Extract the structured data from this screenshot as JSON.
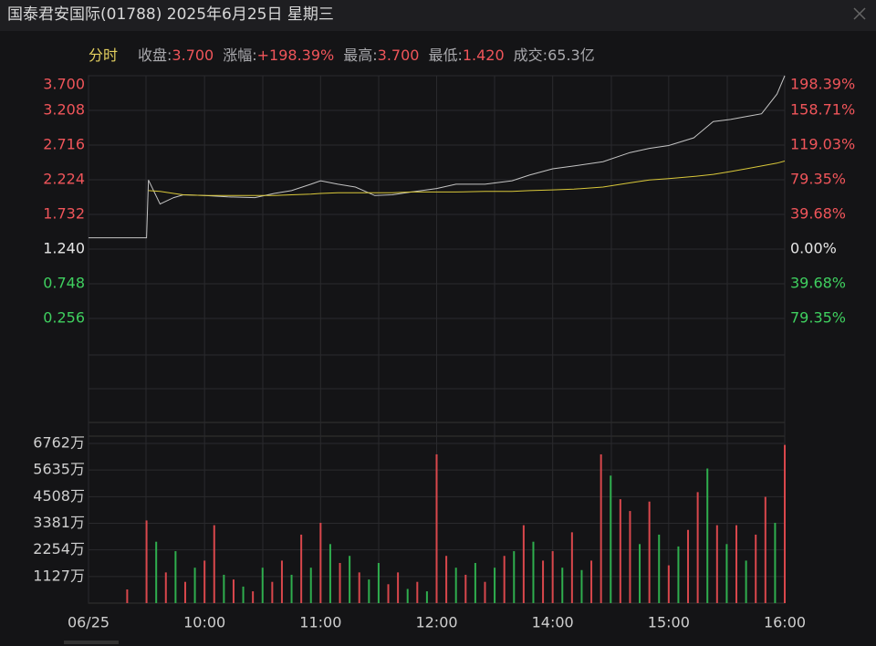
{
  "header": {
    "title": "国泰君安国际(01788) 2025年6月25日 星期三",
    "mode": "分时",
    "stats": [
      {
        "label": "收盘:",
        "value": "3.700",
        "color": "#f0555a"
      },
      {
        "label": "涨幅:",
        "value": "+198.39%",
        "color": "#f0555a"
      },
      {
        "label": "最高:",
        "value": "3.700",
        "color": "#f0555a"
      },
      {
        "label": "最低:",
        "value": "1.420",
        "color": "#f0555a"
      },
      {
        "label": "成交:",
        "value": "65.3亿",
        "color": "#a9a9ad"
      }
    ]
  },
  "chart_data": [
    {
      "type": "line",
      "x": [
        "09:00",
        "09:30",
        "09:31",
        "09:37",
        "09:44",
        "09:49",
        "10:00",
        "10:12",
        "10:26",
        "10:36",
        "10:45",
        "10:55",
        "11:00",
        "11:09",
        "11:18",
        "11:28",
        "11:37",
        "11:47",
        "12:00",
        "13:10",
        "13:25",
        "13:39",
        "13:48",
        "14:00",
        "14:11",
        "14:26",
        "14:40",
        "14:50",
        "15:00",
        "15:13",
        "15:23",
        "15:32",
        "15:40",
        "15:48",
        "15:56",
        "16:00"
      ],
      "series": [
        {
          "color": "#c4c4c4",
          "values": [
            1.4,
            1.4,
            2.22,
            1.88,
            1.97,
            2.01,
            2.0,
            1.98,
            1.97,
            2.03,
            2.07,
            2.16,
            2.21,
            2.16,
            2.12,
            2.0,
            2.01,
            2.05,
            2.1,
            2.16,
            2.16,
            2.21,
            2.29,
            2.38,
            2.42,
            2.48,
            2.61,
            2.67,
            2.71,
            2.82,
            3.05,
            3.08,
            3.12,
            3.16,
            3.44,
            3.7
          ]
        },
        {
          "color": "#d9c83a",
          "values": [
            null,
            null,
            2.07,
            2.06,
            2.03,
            2.01,
            2.0,
            2.0,
            2.0,
            2.0,
            2.01,
            2.02,
            2.03,
            2.04,
            2.04,
            2.04,
            2.04,
            2.05,
            2.05,
            2.05,
            2.06,
            2.06,
            2.07,
            2.08,
            2.09,
            2.12,
            2.18,
            2.22,
            2.24,
            2.27,
            2.3,
            2.34,
            2.38,
            2.42,
            2.46,
            2.49
          ]
        }
      ],
      "xlim": [
        "09:00",
        "16:00"
      ],
      "xticks": [
        {
          "value": "09:00",
          "label": "06/25"
        },
        "10:00",
        "11:00",
        "12:00",
        "14:00",
        "15:00",
        "16:00"
      ],
      "ylim": [
        -1.22,
        3.7
      ],
      "yticks": [
        {
          "value": 3.7,
          "label": "3.700"
        },
        3.208,
        2.716,
        2.224,
        1.732,
        {
          "value": 1.24,
          "label": "1.240"
        },
        0.748,
        0.256
      ],
      "y2lim": [
        -198.39,
        198.39
      ],
      "y2ticks": [
        {
          "value": 198.39,
          "label": "198.39%"
        },
        {
          "value": 158.71,
          "label": "158.71%"
        },
        {
          "value": 119.03,
          "label": "119.03%"
        },
        {
          "value": 79.35,
          "label": "79.35%"
        },
        {
          "value": 39.68,
          "label": "39.68%"
        },
        {
          "value": 0,
          "label": "0.00%"
        },
        {
          "value": -39.68,
          "label": "39.68%"
        },
        {
          "value": -79.35,
          "label": "79.35%"
        }
      ],
      "up_color": "#f0555a",
      "down_color": "#3fcf5f",
      "flat_color": "#e6e6e6",
      "grid": true
    },
    {
      "type": "bar",
      "x": [
        "09:20",
        "09:30",
        "09:35",
        "09:40",
        "09:45",
        "09:50",
        "09:55",
        "10:00",
        "10:05",
        "10:10",
        "10:15",
        "10:20",
        "10:25",
        "10:30",
        "10:35",
        "10:40",
        "10:45",
        "10:50",
        "10:55",
        "11:00",
        "11:05",
        "11:10",
        "11:15",
        "11:20",
        "11:25",
        "11:30",
        "11:35",
        "11:40",
        "11:45",
        "11:50",
        "11:55",
        "12:00",
        "13:05",
        "13:10",
        "13:15",
        "13:20",
        "13:25",
        "13:30",
        "13:35",
        "13:40",
        "13:45",
        "13:50",
        "13:55",
        "14:00",
        "14:05",
        "14:10",
        "14:15",
        "14:20",
        "14:25",
        "14:30",
        "14:35",
        "14:40",
        "14:45",
        "14:50",
        "14:55",
        "15:00",
        "15:05",
        "15:10",
        "15:15",
        "15:20",
        "15:25",
        "15:30",
        "15:35",
        "15:40",
        "15:45",
        "15:50",
        "15:55",
        "16:00"
      ],
      "values": [
        580,
        3500,
        2600,
        1300,
        2200,
        900,
        1500,
        1800,
        3300,
        1200,
        1000,
        700,
        500,
        1500,
        900,
        1800,
        1200,
        2900,
        1500,
        3400,
        2500,
        1700,
        2000,
        1300,
        1000,
        1700,
        800,
        1300,
        600,
        900,
        500,
        6300,
        2000,
        1500,
        1200,
        1700,
        900,
        1500,
        2000,
        2200,
        3300,
        2600,
        1800,
        2200,
        1500,
        3000,
        1400,
        1800,
        6300,
        5400,
        4400,
        3900,
        2500,
        4300,
        2900,
        1600,
        2400,
        3100,
        4700,
        5700,
        3300,
        2500,
        3300,
        1800,
        2900,
        4500,
        3400,
        6700
      ],
      "colors": [
        "#d9474c",
        "#d9474c",
        "#2fae4e",
        "#d9474c",
        "#2fae4e",
        "#d9474c",
        "#2fae4e",
        "#d9474c",
        "#d9474c",
        "#2fae4e",
        "#d9474c",
        "#2fae4e",
        "#d9474c",
        "#2fae4e",
        "#d9474c",
        "#d9474c",
        "#2fae4e",
        "#d9474c",
        "#2fae4e",
        "#d9474c",
        "#2fae4e",
        "#d9474c",
        "#2fae4e",
        "#d9474c",
        "#2fae4e",
        "#2fae4e",
        "#d9474c",
        "#d9474c",
        "#2fae4e",
        "#d9474c",
        "#2fae4e",
        "#d9474c",
        "#d9474c",
        "#2fae4e",
        "#d9474c",
        "#2fae4e",
        "#d9474c",
        "#2fae4e",
        "#d9474c",
        "#2fae4e",
        "#d9474c",
        "#2fae4e",
        "#d9474c",
        "#d9474c",
        "#2fae4e",
        "#d9474c",
        "#2fae4e",
        "#d9474c",
        "#d9474c",
        "#2fae4e",
        "#d9474c",
        "#d9474c",
        "#2fae4e",
        "#d9474c",
        "#2fae4e",
        "#d9474c",
        "#2fae4e",
        "#d9474c",
        "#d9474c",
        "#2fae4e",
        "#d9474c",
        "#2fae4e",
        "#d9474c",
        "#2fae4e",
        "#d9474c",
        "#d9474c",
        "#2fae4e",
        "#d9474c"
      ],
      "ylim": [
        0,
        6762
      ],
      "yticks": [
        {
          "value": 6762,
          "label": "6762万"
        },
        {
          "value": 5635,
          "label": "5635万"
        },
        {
          "value": 4508,
          "label": "4508万"
        },
        {
          "value": 3381,
          "label": "3381万"
        },
        {
          "value": 2254,
          "label": "2254万"
        },
        {
          "value": 1127,
          "label": "1127万"
        }
      ],
      "grid": true
    }
  ]
}
